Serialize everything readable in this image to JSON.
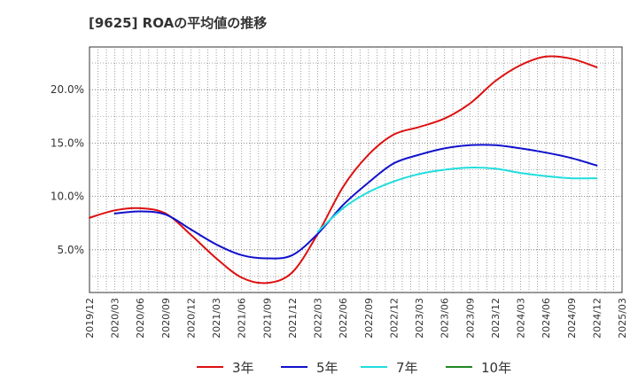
{
  "chart_data": {
    "type": "line",
    "title": "[9625]  ROAの平均値の推移",
    "xlabel": "",
    "ylabel": "",
    "ylim": [
      1.0,
      24.0
    ],
    "yticks": [
      5,
      10,
      15,
      20
    ],
    "ytick_labels": [
      "5.0%",
      "10.0%",
      "15.0%",
      "20.0%"
    ],
    "xticks": [
      "2019/12",
      "2020/03",
      "2020/06",
      "2020/09",
      "2020/12",
      "2021/03",
      "2021/06",
      "2021/09",
      "2021/12",
      "2022/03",
      "2022/06",
      "2022/09",
      "2022/12",
      "2023/03",
      "2023/06",
      "2023/09",
      "2023/12",
      "2024/03",
      "2024/06",
      "2024/09",
      "2024/12",
      "2025/03"
    ],
    "grid": true,
    "legend_position": "bottom",
    "series": [
      {
        "name": "3年",
        "color": "#dd1111",
        "x": [
          "2019/12",
          "2020/03",
          "2020/06",
          "2020/09",
          "2020/12",
          "2021/03",
          "2021/06",
          "2021/09",
          "2021/12",
          "2022/03",
          "2022/06",
          "2022/09",
          "2022/12",
          "2023/03",
          "2023/06",
          "2023/09",
          "2023/12",
          "2024/03",
          "2024/06",
          "2024/09",
          "2024/12"
        ],
        "values": [
          8.0,
          8.7,
          8.9,
          8.4,
          6.4,
          4.2,
          2.4,
          1.9,
          2.9,
          6.5,
          10.9,
          13.9,
          15.8,
          16.5,
          17.3,
          18.7,
          20.8,
          22.3,
          23.1,
          22.9,
          22.1
        ]
      },
      {
        "name": "5年",
        "color": "#1111cc",
        "x": [
          "2020/03",
          "2020/06",
          "2020/09",
          "2020/12",
          "2021/03",
          "2021/06",
          "2021/09",
          "2021/12",
          "2022/03",
          "2022/06",
          "2022/09",
          "2022/12",
          "2023/03",
          "2023/06",
          "2023/09",
          "2023/12",
          "2024/03",
          "2024/06",
          "2024/09",
          "2024/12"
        ],
        "values": [
          8.4,
          8.6,
          8.3,
          6.9,
          5.5,
          4.5,
          4.2,
          4.5,
          6.5,
          9.2,
          11.3,
          13.1,
          13.9,
          14.5,
          14.8,
          14.8,
          14.5,
          14.1,
          13.6,
          12.9
        ]
      },
      {
        "name": "7年",
        "color": "#22dddd",
        "x": [
          "2022/03",
          "2022/06",
          "2022/09",
          "2022/12",
          "2023/03",
          "2023/06",
          "2023/09",
          "2023/12",
          "2024/03",
          "2024/06",
          "2024/09",
          "2024/12"
        ],
        "values": [
          6.7,
          8.9,
          10.4,
          11.4,
          12.1,
          12.5,
          12.7,
          12.6,
          12.2,
          11.9,
          11.7,
          11.7
        ]
      },
      {
        "name": "10年",
        "color": "#228822",
        "x": [],
        "values": []
      }
    ]
  }
}
